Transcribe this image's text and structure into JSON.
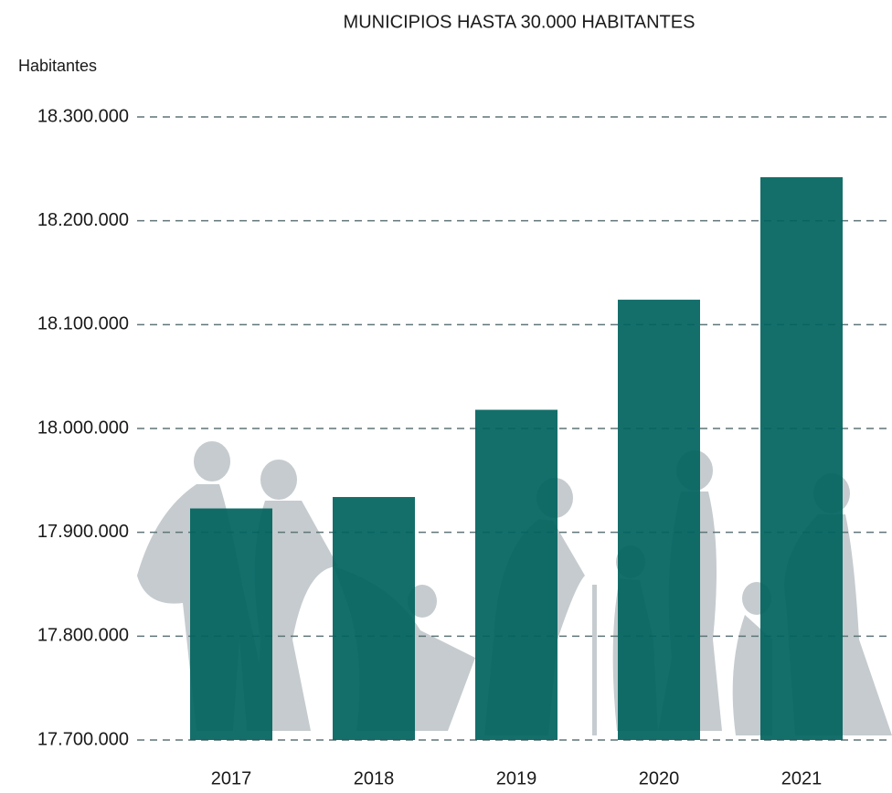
{
  "chart_data": {
    "type": "bar",
    "title": "MUNICIPIOS HASTA 30.000 HABITANTES",
    "y_label": "Habitantes",
    "categories": [
      "2017",
      "2018",
      "2019",
      "2020",
      "2021"
    ],
    "values": [
      17923000,
      17934000,
      18018000,
      18124000,
      18242000
    ],
    "color": "#00635e",
    "ylim": [
      17700000,
      18300000
    ],
    "yticks": [
      {
        "value": 17700000,
        "label": "17.700.000"
      },
      {
        "value": 17800000,
        "label": "17.800.000"
      },
      {
        "value": 17900000,
        "label": "17.900.000"
      },
      {
        "value": 18000000,
        "label": "18.000.000"
      },
      {
        "value": 18100000,
        "label": "18.100.000"
      },
      {
        "value": 18200000,
        "label": "18.200.000"
      },
      {
        "value": 18300000,
        "label": "18.300.000"
      }
    ],
    "grid": true
  }
}
